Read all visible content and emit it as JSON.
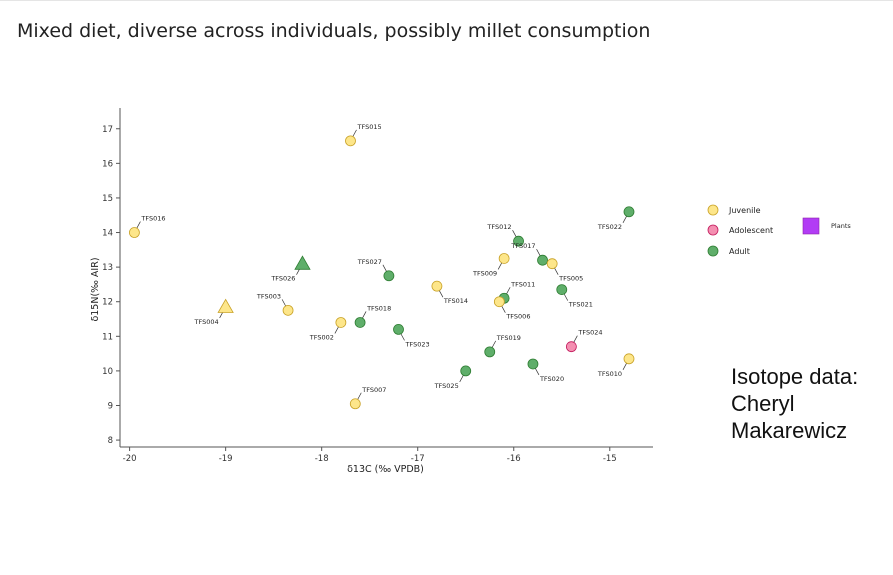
{
  "slide": {
    "title": "Mixed diet, diverse across individuals, possibly millet consumption",
    "credit": "Isotope data: Cheryl Makarewicz"
  },
  "chart_data": {
    "type": "scatter",
    "xlabel": "δ13C (‰ VPDB)",
    "ylabel": "δ15N(‰ AIR)",
    "xlim": [
      -20.1,
      -14.55
    ],
    "ylim": [
      7.8,
      17.6
    ],
    "xticks": [
      -20,
      -19,
      -18,
      -17,
      -16,
      -15
    ],
    "yticks": [
      8,
      9,
      10,
      11,
      12,
      13,
      14,
      15,
      16,
      17
    ],
    "grid": false,
    "legend_position": "right",
    "groups": [
      {
        "name": "Juvenile",
        "color": "#fde68a",
        "stroke": "#c9a227"
      },
      {
        "name": "Adolescent",
        "color": "#f48fb1",
        "stroke": "#c2185b"
      },
      {
        "name": "Adult",
        "color": "#5fae6a",
        "stroke": "#2e7d32"
      },
      {
        "name": "Plants",
        "color": "#b23cf5",
        "stroke": "#8e24aa"
      }
    ],
    "points": [
      {
        "label": "TFS015",
        "x": -17.7,
        "y": 16.65,
        "group": "Juvenile",
        "shape": "circle",
        "dir": "ur"
      },
      {
        "label": "TFS016",
        "x": -19.95,
        "y": 14.0,
        "group": "Juvenile",
        "shape": "circle",
        "dir": "ur"
      },
      {
        "label": "TFS022",
        "x": -14.8,
        "y": 14.6,
        "group": "Adult",
        "shape": "circle",
        "dir": "ll"
      },
      {
        "label": "TFS012",
        "x": -15.95,
        "y": 13.75,
        "group": "Adult",
        "shape": "circle",
        "dir": "ul"
      },
      {
        "label": "TFS017",
        "x": -15.7,
        "y": 13.2,
        "group": "Adult",
        "shape": "circle",
        "dir": "ul"
      },
      {
        "label": "TFS009",
        "x": -16.1,
        "y": 13.25,
        "group": "Juvenile",
        "shape": "circle",
        "dir": "ll"
      },
      {
        "label": "TFS005",
        "x": -15.6,
        "y": 13.1,
        "group": "Juvenile",
        "shape": "circle",
        "dir": "lr"
      },
      {
        "label": "TFS026",
        "x": -18.2,
        "y": 13.1,
        "group": "Adult",
        "shape": "triangle",
        "dir": "ll"
      },
      {
        "label": "TFS027",
        "x": -17.3,
        "y": 12.75,
        "group": "Adult",
        "shape": "circle",
        "dir": "ul"
      },
      {
        "label": "TFS014",
        "x": -16.8,
        "y": 12.45,
        "group": "Juvenile",
        "shape": "circle",
        "dir": "lr"
      },
      {
        "label": "TFS011",
        "x": -16.1,
        "y": 12.1,
        "group": "Adult",
        "shape": "circle",
        "dir": "ur"
      },
      {
        "label": "TFS006",
        "x": -16.15,
        "y": 12.0,
        "group": "Juvenile",
        "shape": "circle",
        "dir": "lr"
      },
      {
        "label": "TFS021",
        "x": -15.5,
        "y": 12.35,
        "group": "Adult",
        "shape": "circle",
        "dir": "lr"
      },
      {
        "label": "TFS003",
        "x": -18.35,
        "y": 11.75,
        "group": "Juvenile",
        "shape": "circle",
        "dir": "ul"
      },
      {
        "label": "TFS004",
        "x": -19.0,
        "y": 11.85,
        "group": "Juvenile",
        "shape": "triangle",
        "dir": "ll"
      },
      {
        "label": "TFS018",
        "x": -17.6,
        "y": 11.4,
        "group": "Adult",
        "shape": "circle",
        "dir": "ur"
      },
      {
        "label": "TFS002",
        "x": -17.8,
        "y": 11.4,
        "group": "Juvenile",
        "shape": "circle",
        "dir": "ll"
      },
      {
        "label": "TFS023",
        "x": -17.2,
        "y": 11.2,
        "group": "Adult",
        "shape": "circle",
        "dir": "lr"
      },
      {
        "label": "TFS024",
        "x": -15.4,
        "y": 10.7,
        "group": "Adolescent",
        "shape": "circle",
        "dir": "ur"
      },
      {
        "label": "TFS019",
        "x": -16.25,
        "y": 10.55,
        "group": "Adult",
        "shape": "circle",
        "dir": "ur"
      },
      {
        "label": "TFS010",
        "x": -14.8,
        "y": 10.35,
        "group": "Juvenile",
        "shape": "circle",
        "dir": "ll"
      },
      {
        "label": "TFS020",
        "x": -15.8,
        "y": 10.2,
        "group": "Adult",
        "shape": "circle",
        "dir": "lr"
      },
      {
        "label": "TFS025",
        "x": -16.5,
        "y": 10.0,
        "group": "Adult",
        "shape": "circle",
        "dir": "ll"
      },
      {
        "label": "TFS007",
        "x": -17.65,
        "y": 9.05,
        "group": "Juvenile",
        "shape": "circle",
        "dir": "ur"
      }
    ]
  }
}
